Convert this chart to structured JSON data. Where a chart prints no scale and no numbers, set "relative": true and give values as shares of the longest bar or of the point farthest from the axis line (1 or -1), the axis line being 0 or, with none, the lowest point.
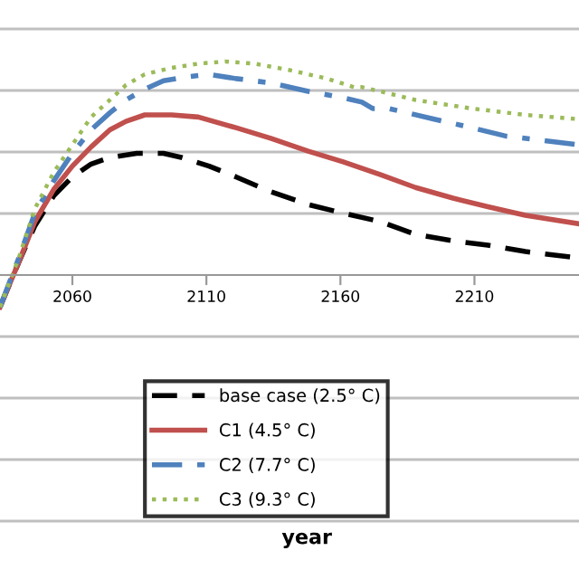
{
  "chart_data": {
    "type": "line",
    "relative": true,
    "annotations": [
      "year"
    ],
    "grid": "y",
    "legend": "bottom",
    "xlim": [
      2033,
      2249
    ],
    "xticks": [
      2060,
      2110,
      2160,
      2210
    ],
    "series": [
      {
        "name": "base case (2.5° C)",
        "color": "#000000",
        "line_style": "dashed",
        "x": [
          2033,
          2040,
          2046,
          2053,
          2060,
          2067,
          2074,
          2084,
          2094,
          2101,
          2111,
          2121,
          2134,
          2148,
          2161,
          2175,
          2188,
          2202,
          2215,
          2229,
          2249
        ],
        "values": [
          -0.15,
          0.06,
          0.23,
          0.37,
          0.46,
          0.52,
          0.55,
          0.57,
          0.57,
          0.55,
          0.51,
          0.46,
          0.39,
          0.33,
          0.29,
          0.25,
          0.19,
          0.16,
          0.14,
          0.11,
          0.08
        ]
      },
      {
        "name": "C1 (4.5° C)",
        "color": "#c0504d",
        "line_style": "solid",
        "x": [
          2033,
          2040,
          2046,
          2053,
          2060,
          2067,
          2074,
          2080,
          2087,
          2097,
          2107,
          2121,
          2134,
          2148,
          2161,
          2175,
          2188,
          2202,
          2215,
          2229,
          2249
        ],
        "values": [
          -0.15,
          0.06,
          0.25,
          0.4,
          0.51,
          0.6,
          0.68,
          0.72,
          0.75,
          0.75,
          0.74,
          0.69,
          0.64,
          0.58,
          0.53,
          0.47,
          0.41,
          0.36,
          0.32,
          0.28,
          0.24
        ]
      },
      {
        "name": "C2 (7.7° C)",
        "color": "#4f81bd",
        "line_style": "dashdot",
        "x": [
          2033,
          2040,
          2046,
          2053,
          2060,
          2067,
          2074,
          2080,
          2087,
          2094,
          2104,
          2111,
          2121,
          2134,
          2148,
          2161,
          2168,
          2172,
          2178,
          2195,
          2209,
          2222,
          2236,
          2249
        ],
        "values": [
          -0.15,
          0.08,
          0.29,
          0.44,
          0.57,
          0.68,
          0.76,
          0.82,
          0.87,
          0.91,
          0.93,
          0.94,
          0.92,
          0.9,
          0.86,
          0.83,
          0.81,
          0.78,
          0.78,
          0.73,
          0.69,
          0.65,
          0.63,
          0.61
        ]
      },
      {
        "name": "C3 (9.3° C)",
        "color": "#9bbb59",
        "line_style": "dotted",
        "x": [
          2033,
          2040,
          2046,
          2053,
          2060,
          2067,
          2074,
          2080,
          2087,
          2097,
          2107,
          2117,
          2128,
          2141,
          2155,
          2165,
          2168,
          2175,
          2188,
          2209,
          2229,
          2249
        ],
        "values": [
          -0.15,
          0.08,
          0.31,
          0.48,
          0.61,
          0.74,
          0.82,
          0.89,
          0.94,
          0.97,
          0.99,
          1.0,
          0.99,
          0.96,
          0.92,
          0.88,
          0.88,
          0.86,
          0.82,
          0.78,
          0.75,
          0.73
        ]
      }
    ]
  }
}
